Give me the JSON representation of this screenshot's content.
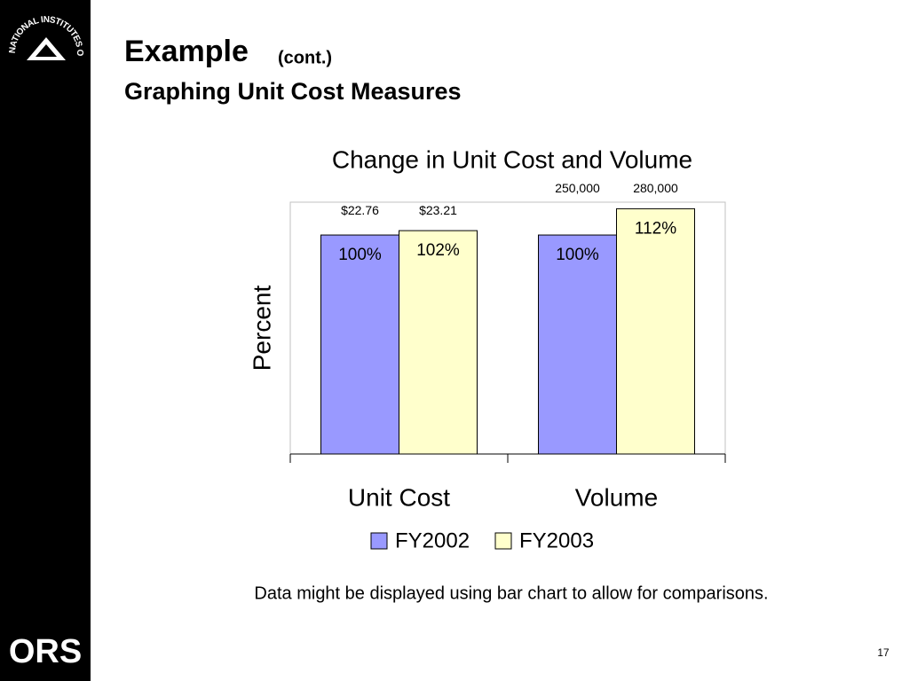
{
  "slide": {
    "title": "Example",
    "title_note": "(cont.)",
    "subtitle": "Graphing Unit Cost Measures",
    "caption": "Data might be displayed using bar chart to allow for comparisons.",
    "page_number": "17",
    "logo_text": "NATIONAL INSTITUTES OF HEALTH",
    "brand": "ORS"
  },
  "chart_data": {
    "type": "bar",
    "title": "Change in Unit Cost and Volume",
    "y_label": "Percent",
    "categories": [
      "Unit Cost",
      "Volume"
    ],
    "series": [
      {
        "name": "FY2002",
        "color": "#9999ff",
        "values": [
          100,
          100
        ],
        "value_labels": [
          "100%",
          "100%"
        ],
        "annotations": [
          "$22.76",
          "250,000"
        ]
      },
      {
        "name": "FY2003",
        "color": "#ffffcc",
        "values": [
          102,
          112
        ],
        "value_labels": [
          "102%",
          "112%"
        ],
        "annotations": [
          "$23.21",
          "280,000"
        ]
      }
    ],
    "ylim": [
      0,
      115
    ],
    "grid": false,
    "legend": "bottom"
  }
}
